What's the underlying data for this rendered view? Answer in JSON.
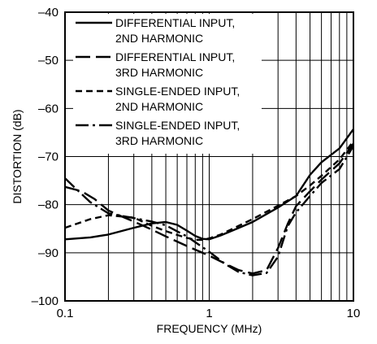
{
  "chart_data": {
    "type": "line",
    "xscale": "log",
    "xlim": [
      0.1,
      10
    ],
    "ylim": [
      -100,
      -40
    ],
    "xlabel": "FREQUENCY (MHz)",
    "ylabel": "DISTORTION (dB)",
    "grid": true,
    "legend_position": "top-left",
    "xticks": [
      {
        "value": 0.1,
        "label": "0.1"
      },
      {
        "value": 1,
        "label": "1"
      },
      {
        "value": 10,
        "label": "10"
      }
    ],
    "yticks": [
      {
        "value": -40,
        "label": "–40"
      },
      {
        "value": -50,
        "label": "–50"
      },
      {
        "value": -60,
        "label": "–60"
      },
      {
        "value": -70,
        "label": "–70"
      },
      {
        "value": -80,
        "label": "–80"
      },
      {
        "value": -90,
        "label": "–90"
      },
      {
        "value": -100,
        "label": "–100"
      }
    ],
    "series": [
      {
        "name_lines": [
          "DIFFERENTIAL INPUT,",
          "2ND HARMONIC"
        ],
        "dash": "solid",
        "points": [
          [
            0.1,
            -87.2
          ],
          [
            0.15,
            -86.8
          ],
          [
            0.2,
            -86.2
          ],
          [
            0.3,
            -84.8
          ],
          [
            0.4,
            -83.9
          ],
          [
            0.5,
            -83.6
          ],
          [
            0.6,
            -84.2
          ],
          [
            0.7,
            -85.4
          ],
          [
            0.8,
            -86.5
          ],
          [
            0.9,
            -87.1
          ],
          [
            1.0,
            -87.2
          ],
          [
            1.2,
            -86.4
          ],
          [
            1.5,
            -85.2
          ],
          [
            2.0,
            -83.6
          ],
          [
            3.0,
            -80.6
          ],
          [
            4.0,
            -78.2
          ],
          [
            5.0,
            -73.8
          ],
          [
            6.0,
            -71.2
          ],
          [
            8.0,
            -68.3
          ],
          [
            10.0,
            -64.3
          ]
        ]
      },
      {
        "name_lines": [
          "DIFFERENTIAL INPUT,",
          "3RD HARMONIC"
        ],
        "dash": "long",
        "points": [
          [
            0.1,
            -76.3
          ],
          [
            0.13,
            -77.2
          ],
          [
            0.16,
            -78.8
          ],
          [
            0.2,
            -81.2
          ],
          [
            0.25,
            -82.5
          ],
          [
            0.3,
            -83.5
          ],
          [
            0.4,
            -85.2
          ],
          [
            0.5,
            -86.6
          ],
          [
            0.7,
            -88.6
          ],
          [
            1.0,
            -90.6
          ],
          [
            1.3,
            -92.3
          ],
          [
            1.6,
            -93.6
          ],
          [
            2.0,
            -94.3
          ],
          [
            2.5,
            -93.6
          ],
          [
            3.0,
            -89.0
          ],
          [
            3.5,
            -84.0
          ],
          [
            4.0,
            -80.3
          ],
          [
            5.0,
            -77.2
          ],
          [
            6.0,
            -74.8
          ],
          [
            8.0,
            -71.4
          ],
          [
            10.0,
            -67.3
          ]
        ]
      },
      {
        "name_lines": [
          "SINGLE-ENDED INPUT,",
          "2ND HARMONIC"
        ],
        "dash": "short",
        "points": [
          [
            0.1,
            -84.8
          ],
          [
            0.15,
            -83.0
          ],
          [
            0.2,
            -82.2
          ],
          [
            0.3,
            -82.7
          ],
          [
            0.4,
            -84.4
          ],
          [
            0.5,
            -85.5
          ],
          [
            0.6,
            -86.3
          ],
          [
            0.7,
            -86.9
          ],
          [
            0.8,
            -87.3
          ],
          [
            0.9,
            -87.3
          ],
          [
            1.0,
            -87.0
          ],
          [
            1.2,
            -86.2
          ],
          [
            1.5,
            -84.8
          ],
          [
            2.0,
            -83.0
          ],
          [
            3.0,
            -80.2
          ],
          [
            4.0,
            -78.2
          ],
          [
            5.0,
            -76.0
          ],
          [
            6.0,
            -74.0
          ],
          [
            8.0,
            -70.6
          ],
          [
            10.0,
            -66.8
          ]
        ]
      },
      {
        "name_lines": [
          "SINGLE-ENDED INPUT,",
          "3RD HARMONIC"
        ],
        "dash": "dashdot",
        "points": [
          [
            0.1,
            -74.5
          ],
          [
            0.12,
            -76.8
          ],
          [
            0.15,
            -79.5
          ],
          [
            0.2,
            -81.8
          ],
          [
            0.3,
            -82.8
          ],
          [
            0.4,
            -83.5
          ],
          [
            0.5,
            -84.3
          ],
          [
            0.7,
            -86.6
          ],
          [
            1.0,
            -89.8
          ],
          [
            1.3,
            -92.4
          ],
          [
            1.6,
            -94.0
          ],
          [
            2.0,
            -94.7
          ],
          [
            2.5,
            -94.2
          ],
          [
            3.0,
            -90.8
          ],
          [
            3.5,
            -84.5
          ],
          [
            4.0,
            -81.6
          ],
          [
            5.0,
            -78.2
          ],
          [
            6.0,
            -75.5
          ],
          [
            8.0,
            -72.6
          ],
          [
            10.0,
            -67.8
          ]
        ]
      }
    ]
  }
}
